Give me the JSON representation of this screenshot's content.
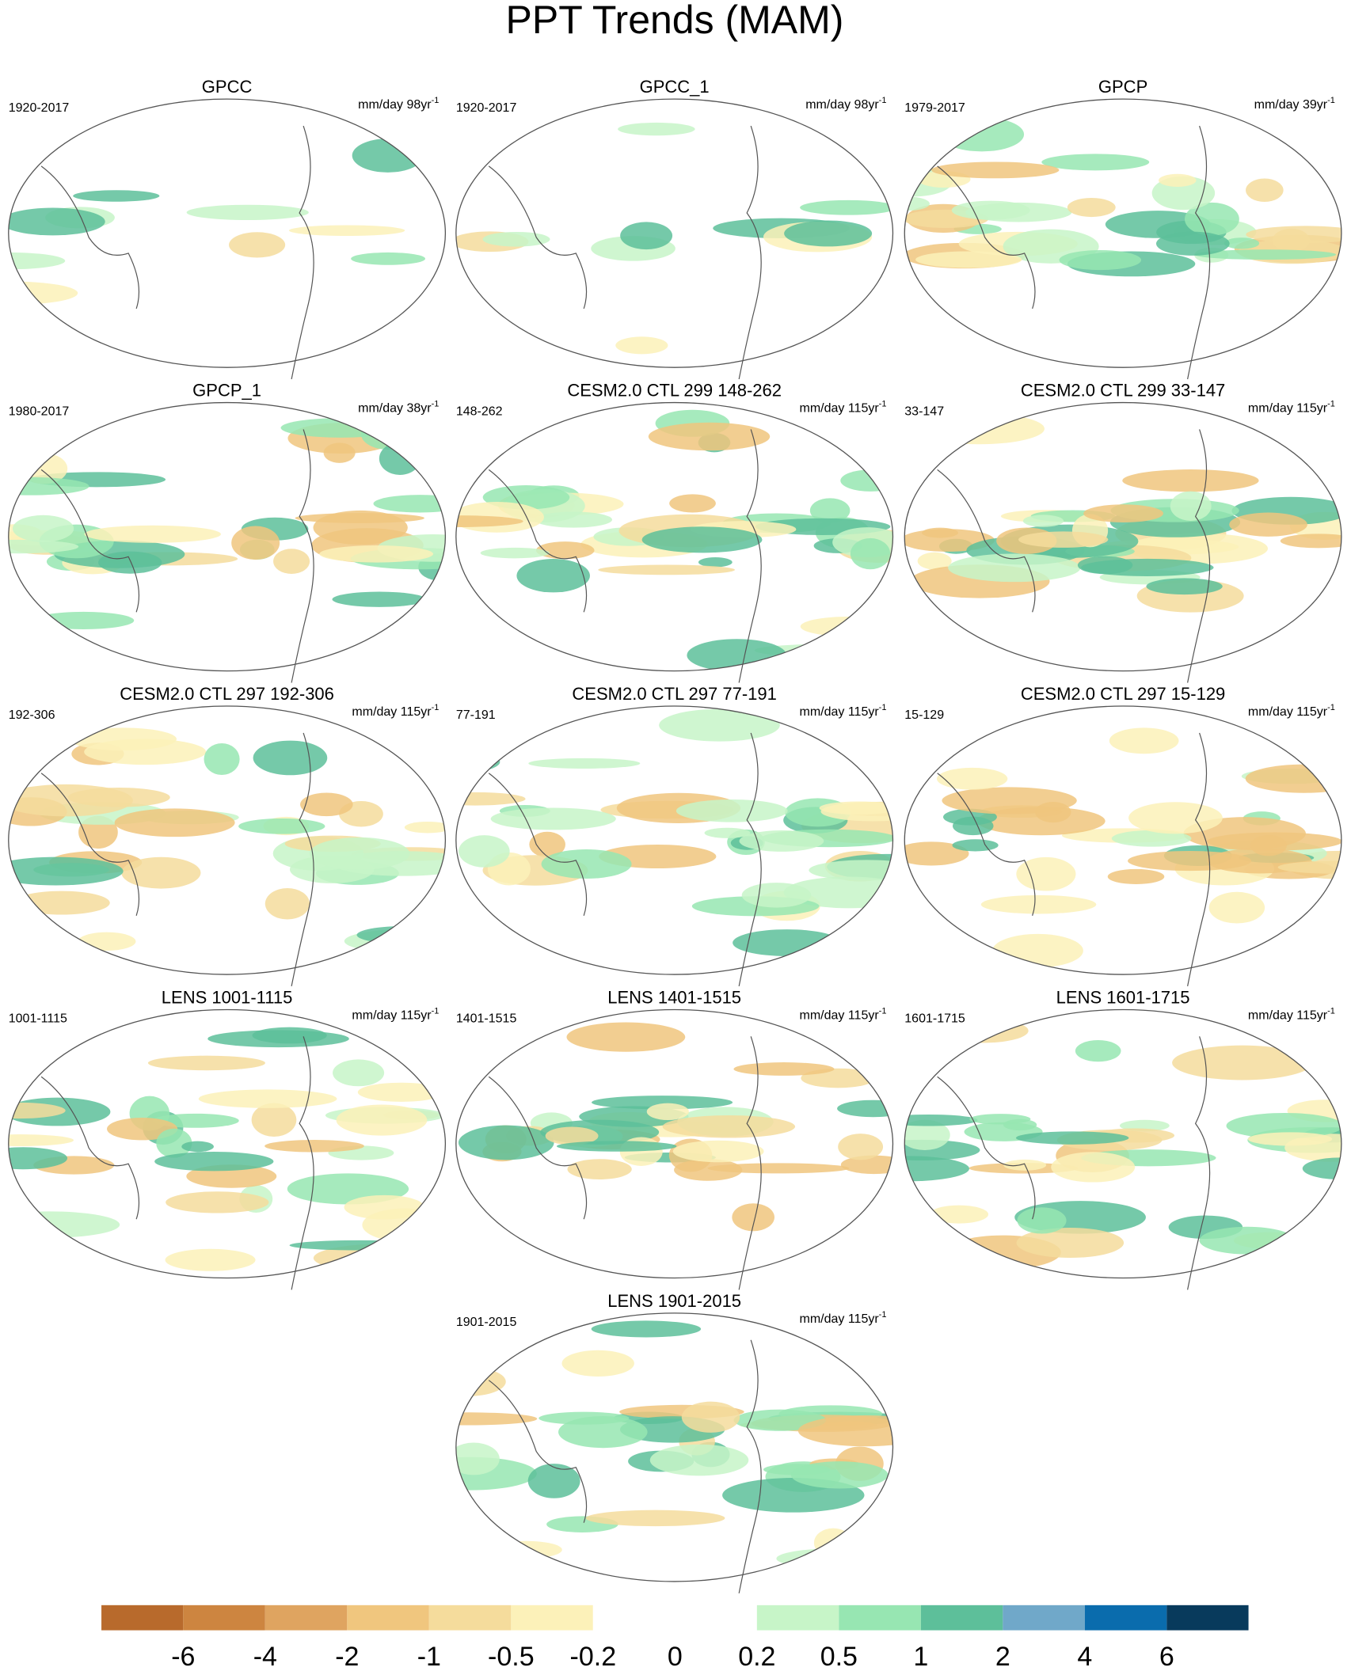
{
  "chart_data": {
    "type": "map-panel",
    "title": "PPT Trends (MAM)",
    "panels": [
      {
        "title": "GPCC",
        "period": "1920-2017",
        "units": "mm/day 98yr",
        "units_exponent": "-1"
      },
      {
        "title": "GPCC_1",
        "period": "1920-2017",
        "units": "mm/day 98yr",
        "units_exponent": "-1"
      },
      {
        "title": "GPCP",
        "period": "1979-2017",
        "units": "mm/day 39yr",
        "units_exponent": "-1"
      },
      {
        "title": "GPCP_1",
        "period": "1980-2017",
        "units": "mm/day 38yr",
        "units_exponent": "-1"
      },
      {
        "title": "CESM2.0 CTL 299 148-262",
        "period": "148-262",
        "units": "mm/day 115yr",
        "units_exponent": "-1"
      },
      {
        "title": "CESM2.0 CTL 299 33-147",
        "period": "33-147",
        "units": "mm/day 115yr",
        "units_exponent": "-1"
      },
      {
        "title": "CESM2.0 CTL 297 192-306",
        "period": "192-306",
        "units": "mm/day 115yr",
        "units_exponent": "-1"
      },
      {
        "title": "CESM2.0 CTL 297 77-191",
        "period": "77-191",
        "units": "mm/day 115yr",
        "units_exponent": "-1"
      },
      {
        "title": "CESM2.0 CTL 297 15-129",
        "period": "15-129",
        "units": "mm/day 115yr",
        "units_exponent": "-1"
      },
      {
        "title": "LENS 1001-1115",
        "period": "1001-1115",
        "units": "mm/day 115yr",
        "units_exponent": "-1"
      },
      {
        "title": "LENS 1401-1515",
        "period": "1401-1515",
        "units": "mm/day 115yr",
        "units_exponent": "-1"
      },
      {
        "title": "LENS 1601-1715",
        "period": "1601-1715",
        "units": "mm/day 115yr",
        "units_exponent": "-1"
      },
      {
        "title": "LENS 1901-2015",
        "period": "1901-2015",
        "units": "mm/day 115yr",
        "units_exponent": "-1"
      }
    ],
    "colorbar": {
      "levels": [
        -6,
        -4,
        -2,
        -1,
        -0.5,
        -0.2,
        0,
        0.2,
        0.5,
        1,
        2,
        4,
        6
      ],
      "colors": [
        "#b86a2c",
        "#cd8540",
        "#dfa460",
        "#f0c67e",
        "#f5dc9c",
        "#fcf1b9",
        "#ffffff",
        "#ffffff",
        "#c7f5c8",
        "#97e6b2",
        "#5dbf9a",
        "#70a8c9",
        "#0a6cad",
        "#083a5c"
      ]
    }
  }
}
